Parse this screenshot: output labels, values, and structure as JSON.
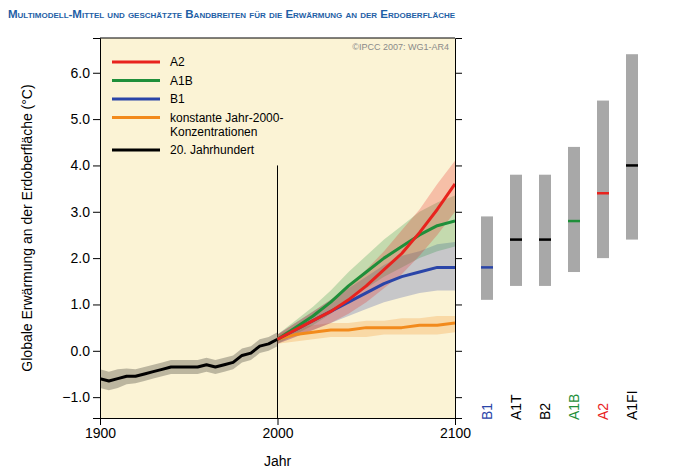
{
  "chart_data": {
    "type": "line",
    "title": "Multimodell-Mittel und geschätzte Bandbreiten für die Erwärmung an der Erdoberfläche",
    "x_label": "Jahr",
    "y_label": "Globale Erwärmung an der Erdoberfläche (°C)",
    "annotation": "©IPCC 2007: WG1-AR4",
    "xlim": [
      1900,
      2100
    ],
    "xticks": [
      1900,
      2000,
      2100
    ],
    "ylim": [
      -1.45,
      6.75
    ],
    "yticks": [
      {
        "value": -1,
        "label": "−1.0"
      },
      {
        "value": 0,
        "label": "0.0"
      },
      {
        "value": 1,
        "label": "1.0"
      },
      {
        "value": 2,
        "label": "2.0"
      },
      {
        "value": 3,
        "label": "3.0"
      },
      {
        "value": 4,
        "label": "4.0"
      },
      {
        "value": 5,
        "label": "5.0"
      },
      {
        "value": 6,
        "label": "6.0"
      }
    ],
    "legend": "upper left",
    "reference_line": {
      "x": 2000,
      "ymax": 4.0
    },
    "series": [
      {
        "name": "A2",
        "color": "#e8231e",
        "x": [
          2000,
          2010,
          2020,
          2030,
          2040,
          2050,
          2060,
          2070,
          2080,
          2090,
          2100
        ],
        "values": [
          0.25,
          0.45,
          0.65,
          0.85,
          1.1,
          1.4,
          1.75,
          2.1,
          2.55,
          3.05,
          3.6
        ],
        "lower": [
          0.15,
          0.3,
          0.45,
          0.6,
          0.8,
          1.05,
          1.35,
          1.65,
          2.05,
          2.5,
          3.0
        ],
        "upper": [
          0.35,
          0.6,
          0.85,
          1.1,
          1.4,
          1.75,
          2.15,
          2.6,
          3.05,
          3.6,
          4.1
        ]
      },
      {
        "name": "A1B",
        "color": "#1f8f3a",
        "x": [
          2000,
          2010,
          2020,
          2030,
          2040,
          2050,
          2060,
          2070,
          2080,
          2090,
          2100
        ],
        "values": [
          0.25,
          0.5,
          0.75,
          1.05,
          1.4,
          1.7,
          2.0,
          2.25,
          2.5,
          2.7,
          2.8
        ],
        "lower": [
          0.15,
          0.35,
          0.55,
          0.8,
          1.1,
          1.35,
          1.6,
          1.8,
          2.0,
          2.15,
          2.25
        ],
        "upper": [
          0.35,
          0.65,
          0.95,
          1.3,
          1.7,
          2.05,
          2.4,
          2.7,
          3.0,
          3.2,
          3.35
        ]
      },
      {
        "name": "B1",
        "color": "#2a45a8",
        "x": [
          2000,
          2010,
          2020,
          2030,
          2040,
          2050,
          2060,
          2070,
          2080,
          2090,
          2100
        ],
        "values": [
          0.25,
          0.45,
          0.65,
          0.85,
          1.05,
          1.25,
          1.45,
          1.6,
          1.7,
          1.8,
          1.8
        ],
        "lower": [
          0.15,
          0.3,
          0.45,
          0.6,
          0.75,
          0.9,
          1.05,
          1.15,
          1.25,
          1.3,
          1.3
        ],
        "upper": [
          0.35,
          0.6,
          0.85,
          1.1,
          1.35,
          1.6,
          1.85,
          2.05,
          2.15,
          2.3,
          2.35
        ]
      },
      {
        "name": "konstante Jahr-2000-\nKonzentrationen",
        "color": "#f28a1c",
        "x": [
          2000,
          2010,
          2020,
          2030,
          2040,
          2050,
          2060,
          2070,
          2080,
          2090,
          2100
        ],
        "values": [
          0.25,
          0.35,
          0.4,
          0.45,
          0.45,
          0.5,
          0.5,
          0.5,
          0.55,
          0.55,
          0.6
        ],
        "lower": [
          0.15,
          0.2,
          0.25,
          0.3,
          0.3,
          0.3,
          0.35,
          0.35,
          0.35,
          0.35,
          0.4
        ],
        "upper": [
          0.35,
          0.5,
          0.55,
          0.6,
          0.6,
          0.65,
          0.65,
          0.7,
          0.7,
          0.75,
          0.75
        ]
      },
      {
        "name": "20. Jahrhundert",
        "color": "#000000",
        "x": [
          1900,
          1905,
          1910,
          1915,
          1920,
          1925,
          1930,
          1935,
          1940,
          1945,
          1950,
          1955,
          1960,
          1965,
          1970,
          1975,
          1980,
          1985,
          1990,
          1995,
          2000
        ],
        "values": [
          -0.6,
          -0.65,
          -0.6,
          -0.55,
          -0.55,
          -0.5,
          -0.45,
          -0.4,
          -0.35,
          -0.35,
          -0.35,
          -0.35,
          -0.3,
          -0.35,
          -0.3,
          -0.25,
          -0.1,
          -0.05,
          0.1,
          0.15,
          0.25
        ],
        "lower": [
          -0.8,
          -0.85,
          -0.8,
          -0.72,
          -0.7,
          -0.65,
          -0.6,
          -0.55,
          -0.5,
          -0.5,
          -0.5,
          -0.5,
          -0.45,
          -0.5,
          -0.45,
          -0.4,
          -0.25,
          -0.2,
          -0.05,
          0.0,
          0.1
        ],
        "upper": [
          -0.4,
          -0.45,
          -0.4,
          -0.38,
          -0.4,
          -0.35,
          -0.3,
          -0.25,
          -0.2,
          -0.2,
          -0.2,
          -0.2,
          -0.15,
          -0.2,
          -0.15,
          -0.1,
          0.05,
          0.1,
          0.25,
          0.3,
          0.4
        ]
      }
    ],
    "bars": {
      "categories": [
        "B1",
        "A1T",
        "B2",
        "A1B",
        "A2",
        "A1FI"
      ],
      "colors": [
        "#2a45a8",
        "#000000",
        "#000000",
        "#1f8f3a",
        "#e8231e",
        "#000000"
      ],
      "low": [
        1.1,
        1.4,
        1.4,
        1.7,
        2.0,
        2.4
      ],
      "best": [
        1.8,
        2.4,
        2.4,
        2.8,
        3.4,
        4.0
      ],
      "high": [
        2.9,
        3.8,
        3.8,
        4.4,
        5.4,
        6.4
      ]
    }
  }
}
